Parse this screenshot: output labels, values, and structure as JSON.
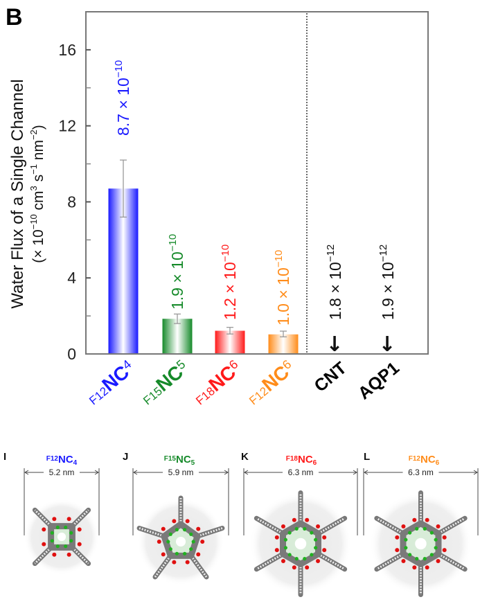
{
  "panel_labels": {
    "chart": "B",
    "structures": [
      "I",
      "J",
      "K",
      "L"
    ]
  },
  "chart_data": {
    "type": "bar",
    "title": "",
    "xlabel": "",
    "ylabel_line1": "Water Flux of a Single Channel",
    "ylabel_line2_parts": {
      "open": "(× 10",
      "exp1": "−10",
      "mid1": " cm",
      "exp2": "3",
      "mid2": " s",
      "exp3": "−1",
      "mid3": " nm",
      "exp4": "−2",
      "close": ")"
    },
    "ylim": [
      0,
      18
    ],
    "yticks_labeled": [
      0,
      4,
      8,
      12,
      16
    ],
    "yticks_minor": [
      2,
      6,
      10,
      14
    ],
    "grid": false,
    "categories": [
      {
        "prefix": "F12",
        "main": "NC",
        "sub": "4",
        "color": "#1a1aff"
      },
      {
        "prefix": "F15",
        "main": "NC",
        "sub": "5",
        "color": "#168a2a"
      },
      {
        "prefix": "F18",
        "main": "NC",
        "sub": "6",
        "color": "#ff1a1a"
      },
      {
        "prefix": "F12",
        "main": "NC",
        "sub": "6",
        "color": "#ff8c1a"
      },
      {
        "prefix": "",
        "main": "CNT",
        "sub": "",
        "color": "#000000"
      },
      {
        "prefix": "",
        "main": "AQP1",
        "sub": "",
        "color": "#000000"
      }
    ],
    "values": [
      8.7,
      1.85,
      1.22,
      1.03,
      0.018,
      0.019
    ],
    "errors": [
      {
        "low": 7.2,
        "high": 10.2
      },
      {
        "low": 1.6,
        "high": 2.1
      },
      {
        "low": 1.05,
        "high": 1.4
      },
      {
        "low": 0.9,
        "high": 1.2
      },
      null,
      null
    ],
    "bar_colors": [
      "#1a1aff",
      "#168a2a",
      "#ff1a1a",
      "#ff8c1a",
      null,
      null
    ],
    "annotations": [
      {
        "mantissa": "8.7 × 10",
        "exponent": "−10",
        "color": "#1a1aff"
      },
      {
        "mantissa": "1.9 × 10",
        "exponent": "−10",
        "color": "#168a2a"
      },
      {
        "mantissa": "1.2 × 10",
        "exponent": "−10",
        "color": "#ff1a1a"
      },
      {
        "mantissa": "1.0 × 10",
        "exponent": "−10",
        "color": "#ff8c1a"
      },
      {
        "mantissa": "1.8 × 10",
        "exponent": "−12",
        "color": "#111111",
        "arrow": "↓"
      },
      {
        "mantissa": "1.9 × 10",
        "exponent": "−12",
        "color": "#111111",
        "arrow": "↓"
      }
    ],
    "separator": {
      "type": "dotted",
      "between_categories": [
        3,
        4
      ]
    }
  },
  "structures": [
    {
      "panel": "I",
      "prefix": "F12",
      "main": "NC",
      "sub": "4",
      "color": "#1a1aff",
      "width_label": "5.2 nm",
      "arms": 4
    },
    {
      "panel": "J",
      "prefix": "F15",
      "main": "NC",
      "sub": "5",
      "color": "#168a2a",
      "width_label": "5.9 nm",
      "arms": 5
    },
    {
      "panel": "K",
      "prefix": "F18",
      "main": "NC",
      "sub": "6",
      "color": "#ff1a1a",
      "width_label": "6.3 nm",
      "arms": 6
    },
    {
      "panel": "L",
      "prefix": "F12",
      "main": "NC",
      "sub": "6",
      "color": "#ff8c1a",
      "width_label": "6.3 nm",
      "arms": 6
    }
  ]
}
